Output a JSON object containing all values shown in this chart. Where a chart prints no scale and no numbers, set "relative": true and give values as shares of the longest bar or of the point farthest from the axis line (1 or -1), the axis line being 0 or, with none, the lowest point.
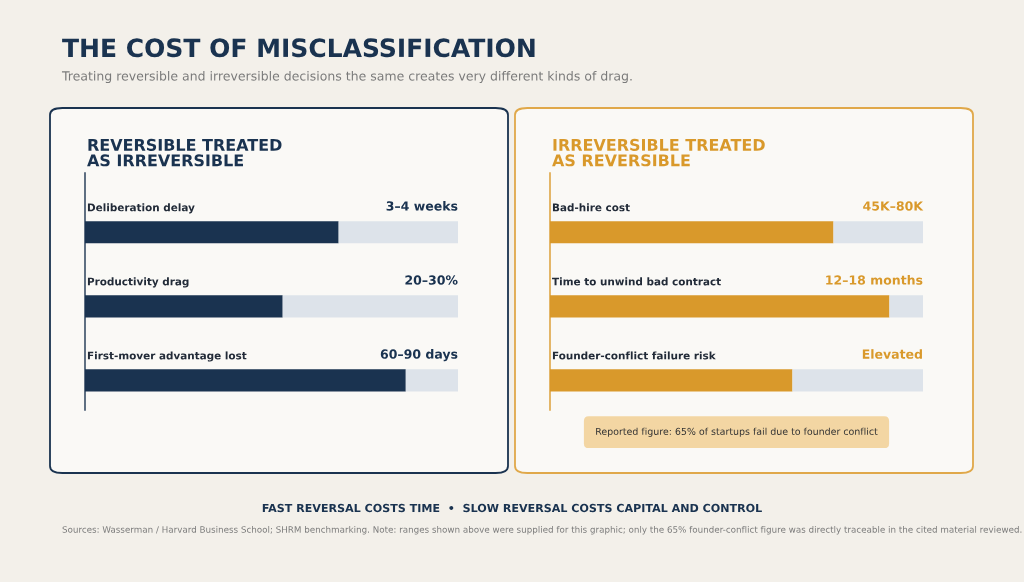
{
  "chart_data": [
    {
      "type": "other",
      "title": "THE COST OF MISCLASSIFICATION",
      "subtitle": "Treating reversible and irreversible decisions the same creates very different kinds of drag.",
      "annotations": [
        "FAST REVERSAL COSTS TIME  •  SLOW REVERSAL COSTS CAPITAL AND CONTROL",
        "Sources: Wasserman / Harvard Business School; SHRM benchmarking. Note: ranges shown above were supplied for this graphic; only the 65% founder-conflict figure was directly traceable in the cited material reviewed."
      ]
    },
    {
      "type": "bar",
      "orientation": "horizontal",
      "stacked": true,
      "relative": true,
      "title": "REVERSIBLE TREATED\nAS IRREVERSIBLE",
      "categories": [
        "Deliberation delay",
        "Productivity drag",
        "First-mover advantage lost"
      ],
      "series": [
        {
          "color": "#1a3350",
          "values": [
            0.68,
            0.53,
            0.86
          ]
        },
        {
          "color": "#dde3ea",
          "values": [
            0.32,
            0.47,
            0.14
          ]
        }
      ],
      "annotations": [
        "3–4 weeks",
        "20–30%",
        "60–90 days"
      ]
    },
    {
      "type": "bar",
      "orientation": "horizontal",
      "stacked": true,
      "relative": true,
      "title": "IRREVERSIBLE TREATED\nAS REVERSIBLE",
      "categories": [
        "Bad-hire cost",
        "Time to unwind bad contract",
        "Founder-conflict failure risk"
      ],
      "series": [
        {
          "color": "#d9992b",
          "values": [
            0.76,
            0.91,
            0.65
          ]
        },
        {
          "color": "#dde3ea",
          "values": [
            0.24,
            0.09,
            0.35
          ]
        }
      ],
      "annotations": [
        "45K–80K",
        "12–18 months",
        "Elevated",
        "Reported figure: 65% of startups fail due to founder conflict"
      ]
    }
  ]
}
